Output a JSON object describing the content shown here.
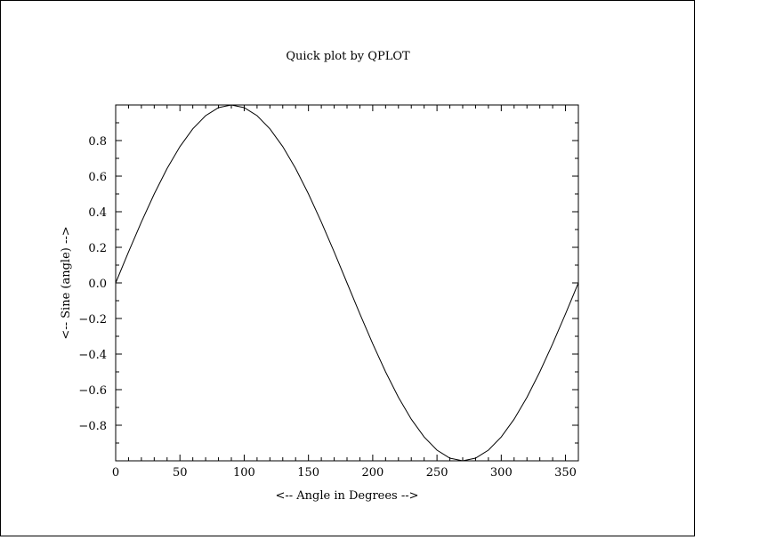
{
  "chart_data": {
    "type": "line",
    "title": "Quick plot by QPLOT",
    "xlabel": "<-- Angle in Degrees -->",
    "ylabel": "<-- Sine (angle) -->",
    "xlim": [
      0,
      360
    ],
    "ylim": [
      -1,
      1
    ],
    "xticks": [
      0,
      50,
      100,
      150,
      200,
      250,
      300,
      350
    ],
    "xtick_labels": [
      "0",
      "50",
      "100",
      "150",
      "200",
      "250",
      "300",
      "350"
    ],
    "yticks": [
      -0.8,
      -0.6,
      -0.4,
      -0.2,
      0.0,
      0.2,
      0.4,
      0.6,
      0.8
    ],
    "ytick_labels": [
      "−0.8",
      "−0.6",
      "−0.4",
      "−0.2",
      "0.0",
      "0.2",
      "0.4",
      "0.6",
      "0.8"
    ],
    "x_minor_step": 10,
    "y_minor_step": 0.1,
    "grid": false,
    "series": [
      {
        "x": [
          0,
          10,
          20,
          30,
          40,
          50,
          60,
          70,
          80,
          90,
          100,
          110,
          120,
          130,
          140,
          150,
          160,
          170,
          180,
          190,
          200,
          210,
          220,
          230,
          240,
          250,
          260,
          270,
          280,
          290,
          300,
          310,
          320,
          330,
          340,
          350,
          360
        ],
        "y": [
          0.0,
          0.174,
          0.342,
          0.5,
          0.643,
          0.766,
          0.866,
          0.94,
          0.985,
          1.0,
          0.985,
          0.94,
          0.866,
          0.766,
          0.643,
          0.5,
          0.342,
          0.174,
          0.0,
          -0.174,
          -0.342,
          -0.5,
          -0.643,
          -0.766,
          -0.866,
          -0.94,
          -0.985,
          -1.0,
          -0.985,
          -0.94,
          -0.866,
          -0.766,
          -0.643,
          -0.5,
          -0.342,
          -0.174,
          0.0
        ],
        "color": "#000000"
      }
    ]
  }
}
